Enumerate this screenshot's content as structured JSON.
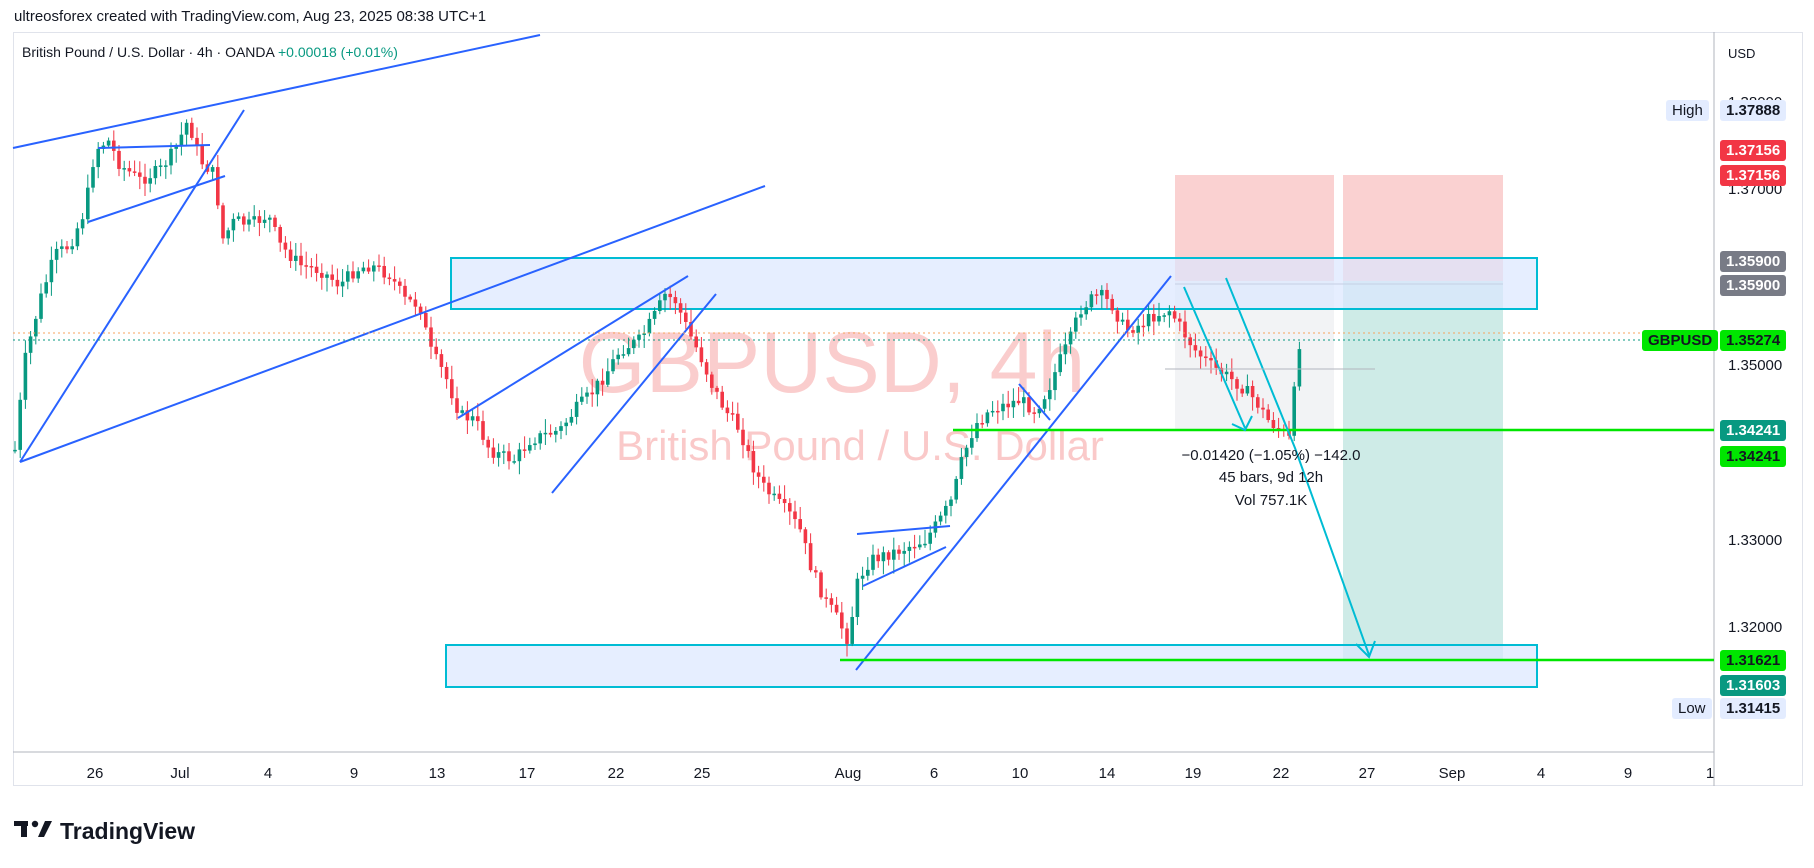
{
  "header": {
    "attribution": "ultreosforex created with TradingView.com, Aug 23, 2025 08:38 UTC+1"
  },
  "symbol": {
    "description": "British Pound / U.S. Dollar · 4h · OANDA",
    "change": "+0.00018 (+0.01%)"
  },
  "watermark": {
    "ticker": "GBPUSD, 4h",
    "name": "British Pound / U.S. Dollar"
  },
  "price_axis": {
    "currency": "USD",
    "ticks": [
      "1.38000",
      "1.37000",
      "1.35000",
      "1.33000",
      "1.32000"
    ],
    "high_label": "High",
    "high_value": "1.37888",
    "stop_upper": "1.37156",
    "stop_lower": "1.37156",
    "entry_upper": "1.35900",
    "entry_lower": "1.35900",
    "symbol_label": "GBPUSD",
    "last_price": "1.35274",
    "line1_upper": "1.34241",
    "line1_lower": "1.34241",
    "target_upper": "1.31621",
    "target_lower": "1.31603",
    "low_label": "Low",
    "low_value": "1.31415"
  },
  "time_axis": {
    "labels": [
      "26",
      "Jul",
      "4",
      "9",
      "13",
      "17",
      "22",
      "25",
      "Aug",
      "6",
      "10",
      "14",
      "19",
      "22",
      "27",
      "Sep",
      "4",
      "9",
      "1"
    ]
  },
  "measure": {
    "line1": "−0.01420 (−1.05%) −142.0",
    "line2": "45 bars, 9d 12h",
    "line3": "Vol 757.1K"
  },
  "branding": {
    "logo_text": "TradingView"
  },
  "colors": {
    "up": "#089981",
    "down": "#f23645",
    "trendline": "#2962ff",
    "zone_border": "#00bcd4",
    "zone_fill": "#dbe7ff",
    "green_line": "#00e600",
    "stop_zone": "#f7b3b3",
    "target_zone": "#a6dbd4"
  }
}
